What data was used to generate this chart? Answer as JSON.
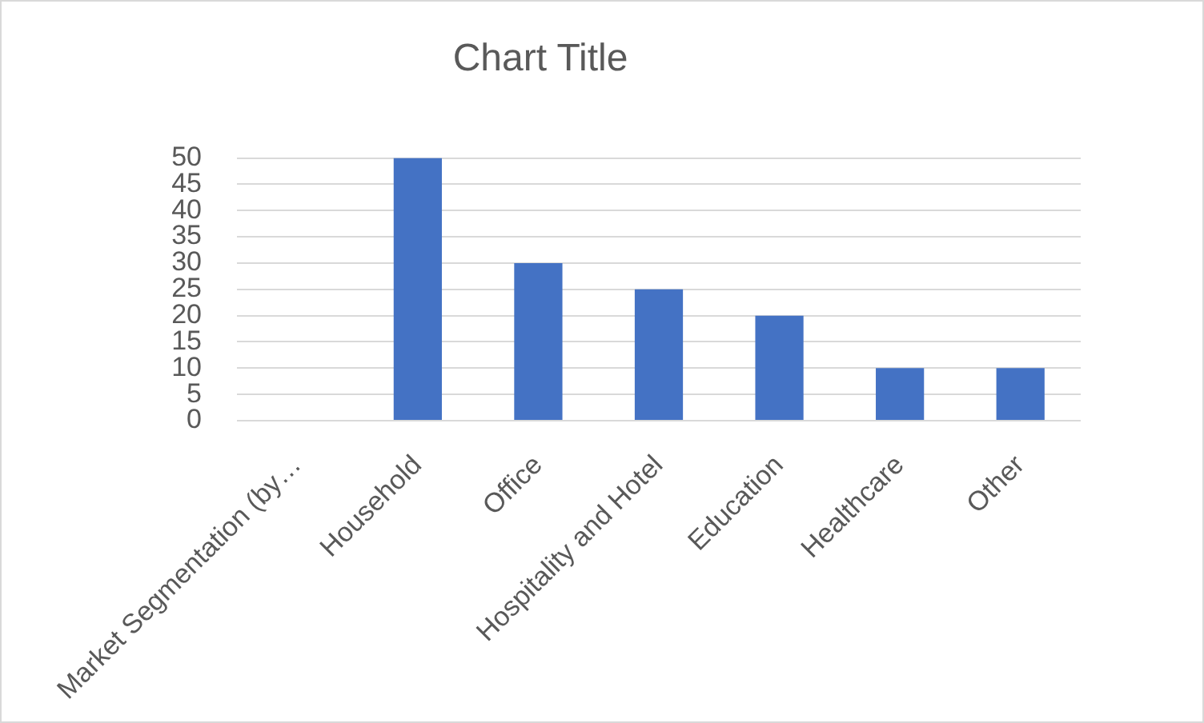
{
  "chart_data": {
    "type": "bar",
    "title": "Chart Title",
    "categories": [
      "Market Segmentation (by…",
      "Household",
      "Office",
      "Hospitality and Hotel",
      "Education",
      "Healthcare",
      "Other"
    ],
    "values": [
      null,
      50,
      30,
      25,
      20,
      10,
      10
    ],
    "color": "#4472c4",
    "ylim": [
      0,
      50
    ],
    "yticks": [
      0,
      5,
      10,
      15,
      20,
      25,
      30,
      35,
      40,
      45,
      50
    ],
    "grid": "y"
  }
}
